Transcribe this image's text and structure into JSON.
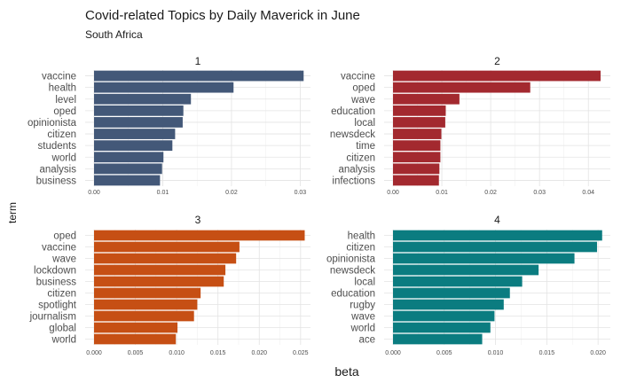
{
  "chart_data": {
    "type": "bar",
    "orientation": "horizontal",
    "title": "Covid-related Topics by Daily Maverick in June",
    "subtitle": "South Africa",
    "xlabel": "beta",
    "ylabel": "term",
    "grid": true,
    "facets": [
      {
        "label": "1",
        "color": "#435878",
        "xlim": [
          0,
          0.0315
        ],
        "ticks": [
          0,
          0.01,
          0.02,
          0.03
        ],
        "tick_labels": [
          "0.00",
          "0.01",
          "0.02",
          "0.03"
        ],
        "categories": [
          "vaccine",
          "health",
          "level",
          "oped",
          "opinionista",
          "citizen",
          "students",
          "world",
          "analysis",
          "business"
        ],
        "values": [
          0.0305,
          0.0203,
          0.0141,
          0.013,
          0.0129,
          0.0118,
          0.0114,
          0.0101,
          0.0099,
          0.0096
        ]
      },
      {
        "label": "2",
        "color": "#a3292f",
        "xlim": [
          0,
          0.0445
        ],
        "ticks": [
          0,
          0.01,
          0.02,
          0.03,
          0.04
        ],
        "tick_labels": [
          "0.00",
          "0.01",
          "0.02",
          "0.03",
          "0.04"
        ],
        "categories": [
          "vaccine",
          "oped",
          "wave",
          "education",
          "local",
          "newsdeck",
          "time",
          "citizen",
          "analysis",
          "infections"
        ],
        "values": [
          0.0425,
          0.0281,
          0.0136,
          0.0108,
          0.0107,
          0.0099,
          0.0097,
          0.0097,
          0.0095,
          0.0094
        ]
      },
      {
        "label": "3",
        "color": "#c64f14",
        "xlim": [
          0,
          0.0262
        ],
        "ticks": [
          0,
          0.005,
          0.01,
          0.015,
          0.02,
          0.025
        ],
        "tick_labels": [
          "0.000",
          "0.005",
          "0.010",
          "0.015",
          "0.020",
          "0.025"
        ],
        "categories": [
          "oped",
          "vaccine",
          "wave",
          "lockdown",
          "business",
          "citizen",
          "spotlight",
          "journalism",
          "global",
          "world"
        ],
        "values": [
          0.0255,
          0.0176,
          0.0172,
          0.0159,
          0.0157,
          0.0129,
          0.0125,
          0.0121,
          0.0101,
          0.0099
        ]
      },
      {
        "label": "4",
        "color": "#0b7c80",
        "xlim": [
          0,
          0.0212
        ],
        "ticks": [
          0,
          0.005,
          0.01,
          0.015,
          0.02
        ],
        "tick_labels": [
          "0.000",
          "0.005",
          "0.010",
          "0.015",
          "0.020"
        ],
        "categories": [
          "health",
          "citizen",
          "opinionista",
          "newsdeck",
          "local",
          "education",
          "rugby",
          "wave",
          "world",
          "ace"
        ],
        "values": [
          0.0204,
          0.0199,
          0.0177,
          0.0142,
          0.0126,
          0.0114,
          0.0108,
          0.0099,
          0.0095,
          0.0087
        ]
      }
    ]
  }
}
